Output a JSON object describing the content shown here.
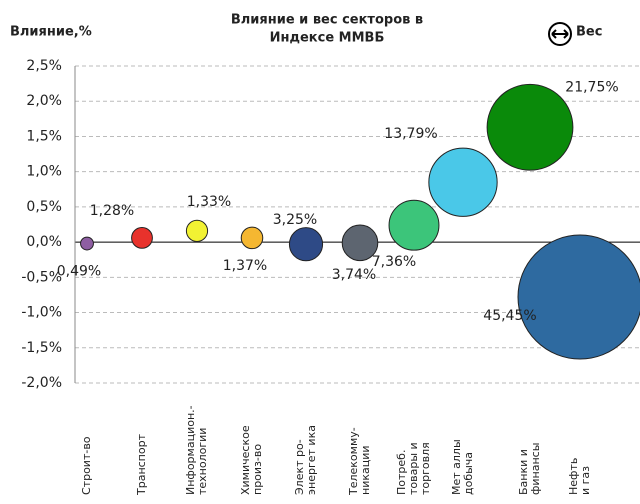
{
  "chart_data": {
    "type": "bubble",
    "title": [
      "Влияние и вес секторов в",
      "Индексе ММВБ"
    ],
    "y_label": "Влияние,%",
    "legend_label": "Вес",
    "categories": [
      [
        "Строит-во"
      ],
      [
        "Транспорт"
      ],
      [
        "Информацион.-",
        "технологии"
      ],
      [
        "Химическое",
        "произ-во"
      ],
      [
        "Элект ро-",
        "энергет ика"
      ],
      [
        "Телекомму-",
        "никации"
      ],
      [
        "Потреб.",
        "товары и",
        "торговля"
      ],
      [
        "Мет аллы",
        "добыча"
      ],
      [
        "Банки и",
        "финансы"
      ],
      [
        "Нефть",
        "и газ"
      ]
    ],
    "values": [
      -0.02,
      0.06,
      0.16,
      0.06,
      -0.03,
      -0.01,
      0.24,
      0.85,
      1.63,
      -0.78
    ],
    "sizes": [
      0.49,
      1.28,
      1.33,
      1.37,
      3.25,
      3.74,
      7.36,
      13.79,
      21.75,
      45.45
    ],
    "value_labels": [
      "0,49%",
      "1,28%",
      "1,33%",
      "1,37%",
      "3,25%",
      "3,74%",
      "7,36%",
      "13,79%",
      "21,75%",
      "45,45%"
    ],
    "colors": [
      "#8e5ea2",
      "#e8322c",
      "#f2f233",
      "#f5b731",
      "#2e4a86",
      "#5d6570",
      "#3cc57a",
      "#4ac8e8",
      "#0a8a0a",
      "#2e6aa0"
    ],
    "ylim": [
      -2.0,
      2.5
    ],
    "yticks": [
      {
        "value": -2.0,
        "label": "-2,0%"
      },
      {
        "value": -1.5,
        "label": "-1,5%"
      },
      {
        "value": -1.0,
        "label": "-1,0%"
      },
      {
        "value": -0.5,
        "label": "-0,5%"
      },
      {
        "value": 0,
        "label": "0,0%"
      },
      {
        "value": 0.5,
        "label": "0,5%"
      },
      {
        "value": 1.0,
        "label": "1,0%"
      },
      {
        "value": 1.5,
        "label": "1,5%"
      },
      {
        "value": 2.0,
        "label": "2,0%"
      },
      {
        "value": 2.5,
        "label": "2,5%"
      }
    ],
    "grid": true
  }
}
